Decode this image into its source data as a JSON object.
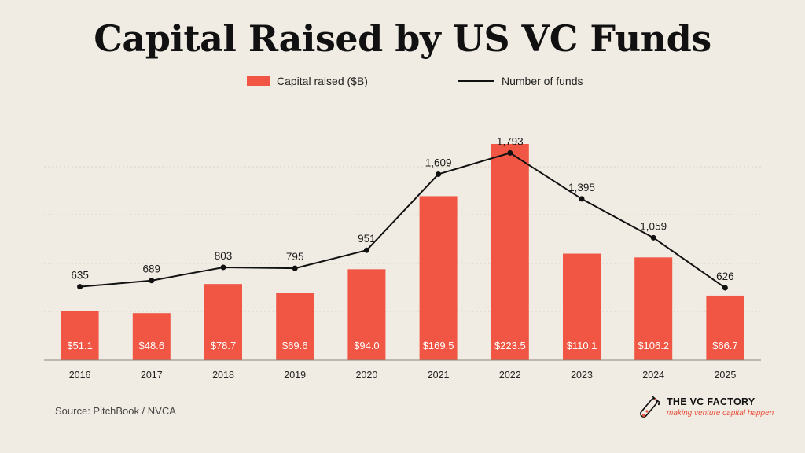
{
  "chart_data": {
    "type": "bar",
    "title": "Capital Raised by US VC Funds",
    "categories": [
      "2016",
      "2017",
      "2018",
      "2019",
      "2020",
      "2021",
      "2022",
      "2023",
      "2024",
      "2025"
    ],
    "series": [
      {
        "name": "Capital raised ($B)",
        "kind": "bar",
        "values": [
          51.1,
          48.6,
          78.7,
          69.6,
          94.0,
          169.5,
          223.5,
          110.1,
          106.2,
          66.7
        ],
        "labels": [
          "$51.1",
          "$48.6",
          "$78.7",
          "$69.6",
          "$94.0",
          "$169.5",
          "$223.5",
          "$110.1",
          "$106.2",
          "$66.7"
        ],
        "color": "#f05643"
      },
      {
        "name": "Number of funds",
        "kind": "line",
        "values": [
          635,
          689,
          803,
          795,
          951,
          1609,
          1793,
          1395,
          1059,
          626
        ],
        "labels": [
          "635",
          "689",
          "803",
          "795",
          "951",
          "1,609",
          "1,793",
          "1,395",
          "1,059",
          "626"
        ],
        "color": "#111111"
      }
    ],
    "legend_position": "top-center",
    "grid": "horizontal-dotted"
  },
  "source": "Source: PitchBook / NVCA",
  "brand": {
    "name": "THE VC FACTORY",
    "tagline": "making venture capital happen",
    "logo_icon": "test-tube-icon"
  }
}
